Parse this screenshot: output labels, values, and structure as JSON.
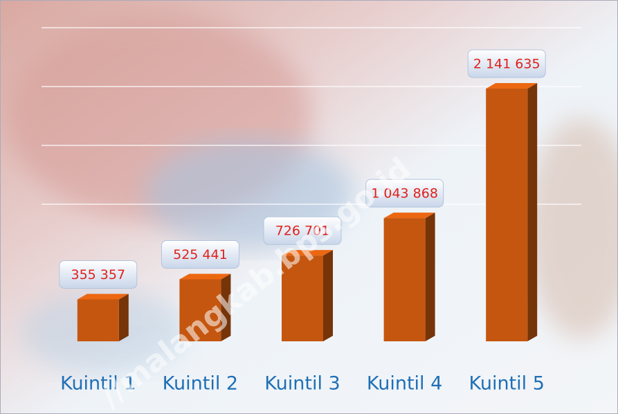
{
  "chart_data": {
    "type": "bar",
    "categories": [
      "Kuintil 1",
      "Kuintil 2",
      "Kuintil 3",
      "Kuintil 4",
      "Kuintil 5"
    ],
    "values": [
      355357,
      525441,
      726701,
      1043868,
      2141635
    ],
    "value_labels": [
      "355 357",
      "525 441",
      "726 701",
      "1 043 868",
      "2 141 635"
    ],
    "color": "#c5560f",
    "ylim": [
      0,
      2400000
    ]
  },
  "watermark": "//malangkab.bps.go.id"
}
